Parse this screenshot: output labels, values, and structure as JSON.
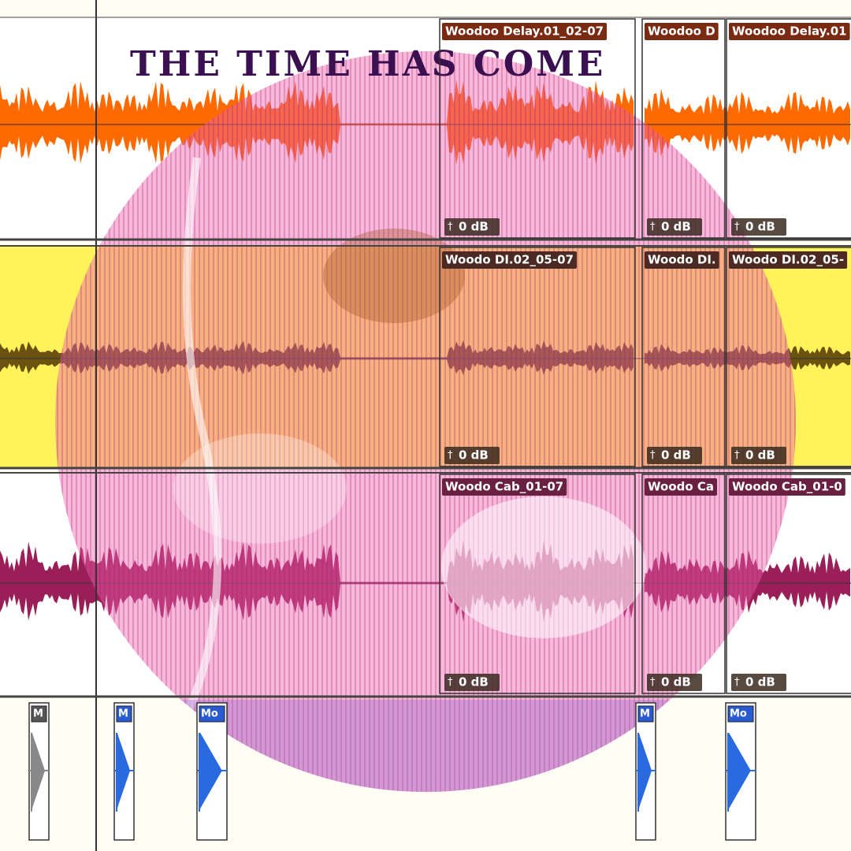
{
  "title": "THE TIME HAS COME",
  "tracks": [
    {
      "clips": [
        {
          "name": "Woodoo Delay.01_02-07",
          "gain": "0 dB"
        },
        {
          "name": "Woodoo D",
          "gain": "0 dB"
        },
        {
          "name": "Woodoo Delay.01",
          "gain": "0 dB"
        }
      ]
    },
    {
      "clips": [
        {
          "name": "Woodo DI.02_05-07",
          "gain": "0 dB"
        },
        {
          "name": "Woodo DI.",
          "gain": "0 dB"
        },
        {
          "name": "Woodo DI.02_05-",
          "gain": "0 dB"
        }
      ]
    },
    {
      "clips": [
        {
          "name": "Woodo Cab_01-07",
          "gain": "0 dB"
        },
        {
          "name": "Woodo Ca",
          "gain": "0 dB"
        },
        {
          "name": "Woodo Cab_01-0",
          "gain": "0 dB"
        }
      ]
    }
  ],
  "bottom_lane": {
    "clips": [
      "M",
      "M",
      "Mo",
      "M",
      "Mo"
    ]
  }
}
